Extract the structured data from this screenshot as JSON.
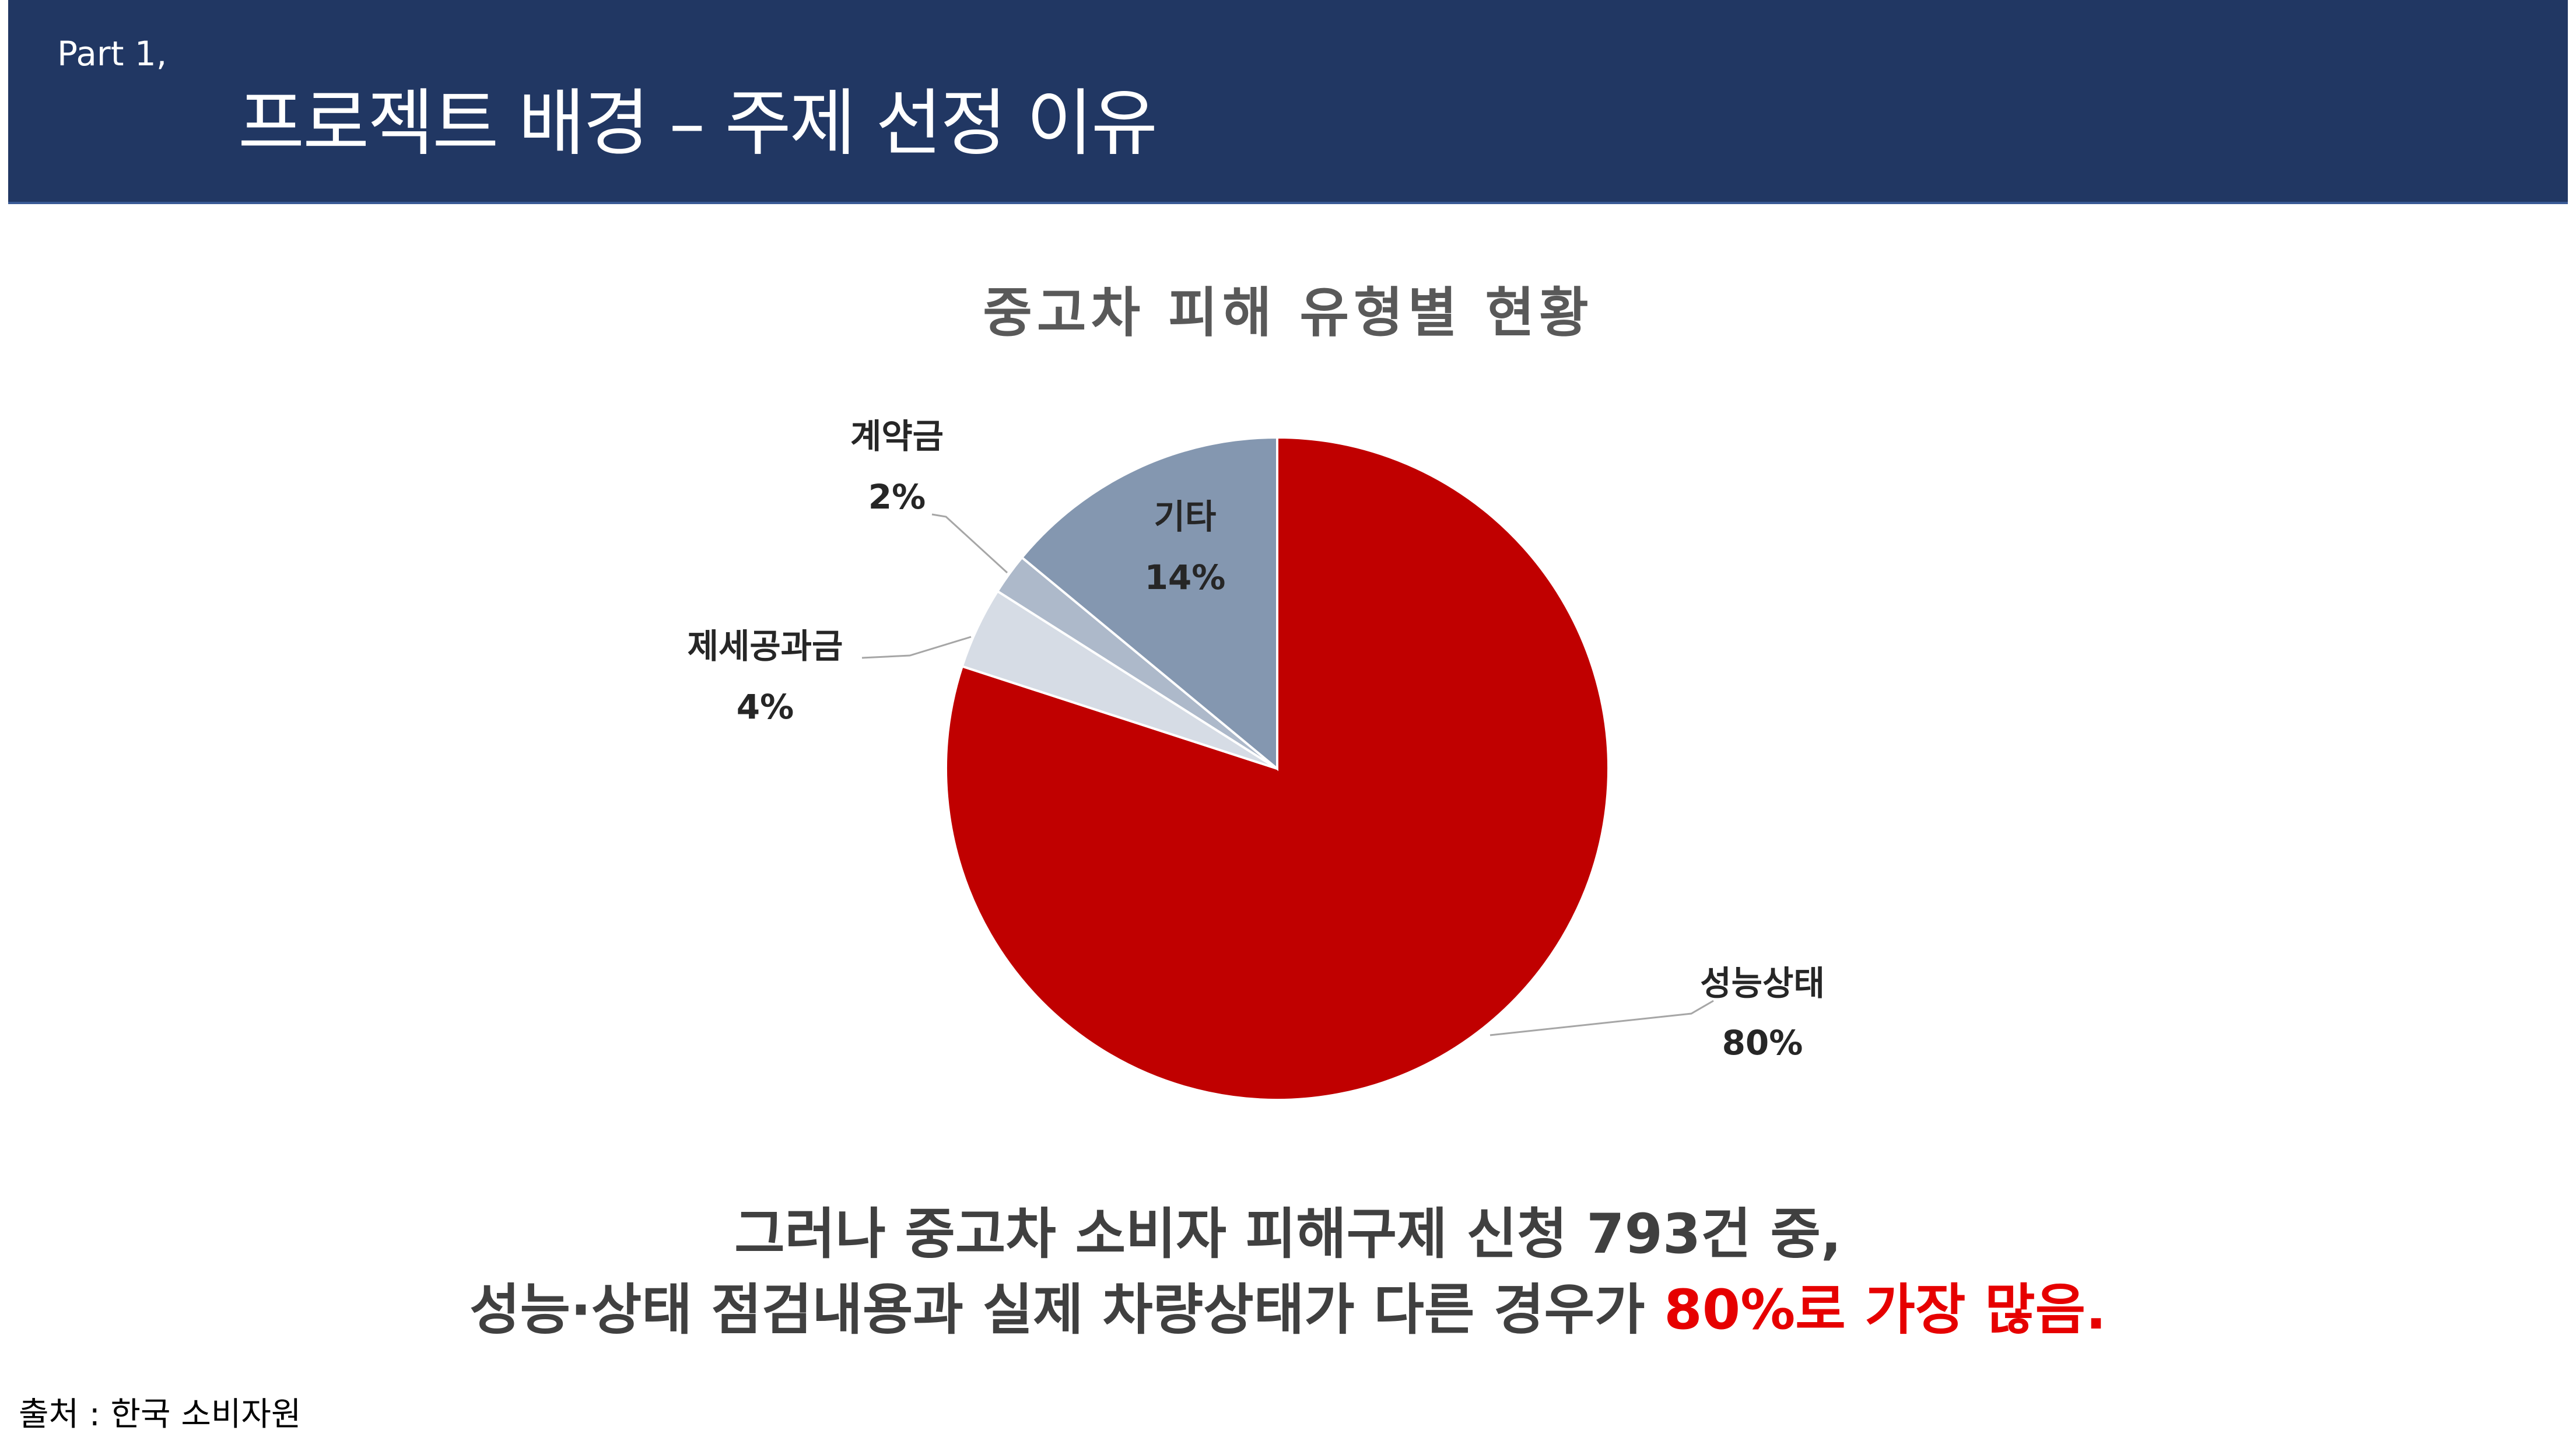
{
  "header": {
    "part_label": "Part 1,",
    "title": "프로젝트 배경 – 주제 선정 이유"
  },
  "chart_data": {
    "type": "pie",
    "title": "중고차 피해 유형별 현황",
    "slices": [
      {
        "label": "성능상태",
        "value": 80,
        "value_label": "80%",
        "color": "#c00000"
      },
      {
        "label": "제세공과금",
        "value": 4,
        "value_label": "4%",
        "color": "#d6dce5"
      },
      {
        "label": "계약금",
        "value": 2,
        "value_label": "2%",
        "color": "#adb9ca"
      },
      {
        "label": "기타",
        "value": 14,
        "value_label": "14%",
        "color": "#8497b0"
      }
    ],
    "start_angle": "12 o'clock",
    "direction": "clockwise"
  },
  "caption": {
    "line1": "그러나 중고차 소비자 피해구제 신청 793건 중,",
    "line2_prefix": "성능·상태 점검내용과 실제 차량상태가 다른 경우가 ",
    "line2_highlight": "80%로 가장 많음."
  },
  "source": "출처 : 한국 소비자원"
}
